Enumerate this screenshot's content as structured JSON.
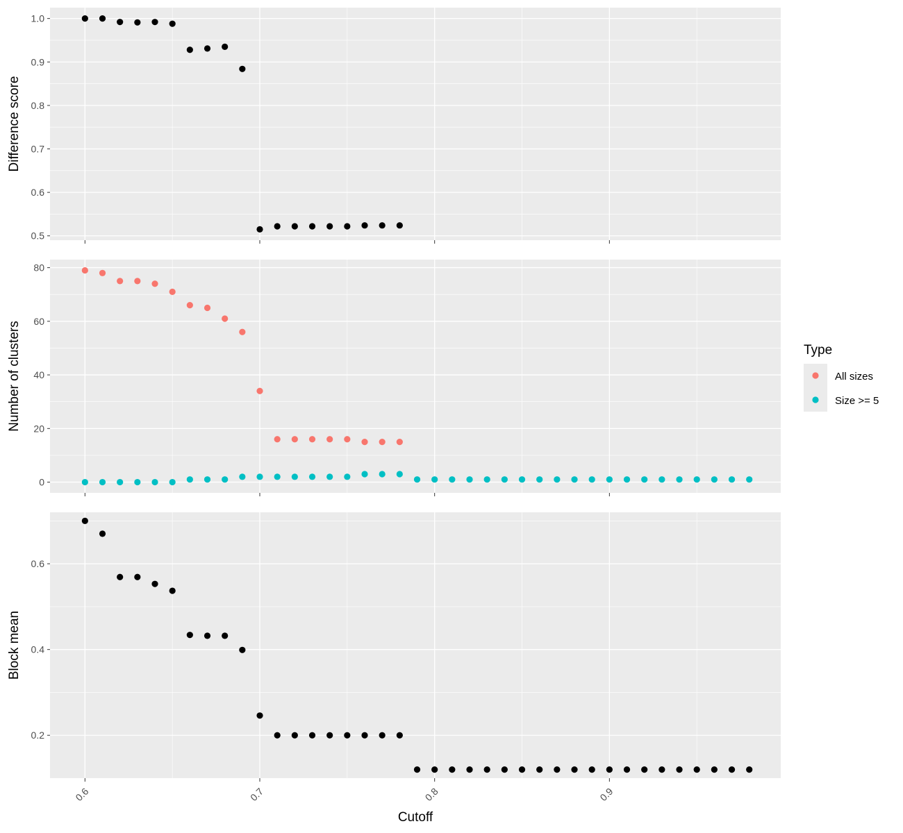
{
  "chart_data": {
    "type": "scatter",
    "xlabel": "Cutoff",
    "x_ticks": [
      "0.6",
      "0.7",
      "0.8",
      "0.9"
    ],
    "xlim": [
      0.58,
      0.998
    ],
    "grid": true,
    "legend": {
      "title": "Type",
      "placement": "right",
      "entries": [
        {
          "label": "All sizes",
          "color": "#F8766D"
        },
        {
          "label": "Size >= 5",
          "color": "#00BFC4"
        }
      ]
    },
    "panels": [
      {
        "name": "difference-score",
        "ylabel": "Difference score",
        "ylim": [
          0.49,
          1.025
        ],
        "y_ticks": [
          "0.5",
          "0.6",
          "0.7",
          "0.8",
          "0.9",
          "1.0"
        ],
        "series": [
          {
            "color": "#000000",
            "x": [
              0.6,
              0.61,
              0.62,
              0.63,
              0.64,
              0.65,
              0.66,
              0.67,
              0.68,
              0.69,
              0.7,
              0.71,
              0.72,
              0.73,
              0.74,
              0.75,
              0.76,
              0.77,
              0.78
            ],
            "y": [
              1.0,
              1.0,
              0.992,
              0.991,
              0.992,
              0.988,
              0.928,
              0.931,
              0.935,
              0.884,
              0.515,
              0.522,
              0.522,
              0.522,
              0.522,
              0.522,
              0.524,
              0.524,
              0.524
            ]
          }
        ]
      },
      {
        "name": "number-of-clusters",
        "ylabel": "Number of clusters",
        "ylim": [
          -4,
          83
        ],
        "y_ticks": [
          "0",
          "20",
          "40",
          "60",
          "80"
        ],
        "series": [
          {
            "name": "All sizes",
            "color": "#F8766D",
            "x": [
              0.6,
              0.61,
              0.62,
              0.63,
              0.64,
              0.65,
              0.66,
              0.67,
              0.68,
              0.69,
              0.7,
              0.71,
              0.72,
              0.73,
              0.74,
              0.75,
              0.76,
              0.77,
              0.78
            ],
            "y": [
              79,
              78,
              75,
              75,
              74,
              71,
              66,
              65,
              61,
              56,
              34,
              16,
              16,
              16,
              16,
              16,
              15,
              15,
              15
            ]
          },
          {
            "name": "Size >= 5",
            "color": "#00BFC4",
            "x": [
              0.6,
              0.61,
              0.62,
              0.63,
              0.64,
              0.65,
              0.66,
              0.67,
              0.68,
              0.69,
              0.7,
              0.71,
              0.72,
              0.73,
              0.74,
              0.75,
              0.76,
              0.77,
              0.78,
              0.79,
              0.8,
              0.81,
              0.82,
              0.83,
              0.84,
              0.85,
              0.86,
              0.87,
              0.88,
              0.89,
              0.9,
              0.91,
              0.92,
              0.93,
              0.94,
              0.95,
              0.96,
              0.97,
              0.98
            ],
            "y": [
              0,
              0,
              0,
              0,
              0,
              0,
              1,
              1,
              1,
              2,
              2,
              2,
              2,
              2,
              2,
              2,
              3,
              3,
              3,
              1,
              1,
              1,
              1,
              1,
              1,
              1,
              1,
              1,
              1,
              1,
              1,
              1,
              1,
              1,
              1,
              1,
              1,
              1,
              1
            ]
          }
        ]
      },
      {
        "name": "block-mean",
        "ylabel": "Block mean",
        "ylim": [
          0.1,
          0.72
        ],
        "y_ticks": [
          "0.2",
          "0.4",
          "0.6"
        ],
        "series": [
          {
            "color": "#000000",
            "x": [
              0.6,
              0.61,
              0.62,
              0.63,
              0.64,
              0.65,
              0.66,
              0.67,
              0.68,
              0.69,
              0.7,
              0.71,
              0.72,
              0.73,
              0.74,
              0.75,
              0.76,
              0.77,
              0.78,
              0.79,
              0.8,
              0.81,
              0.82,
              0.83,
              0.84,
              0.85,
              0.86,
              0.87,
              0.88,
              0.89,
              0.9,
              0.91,
              0.92,
              0.93,
              0.94,
              0.95,
              0.96,
              0.97,
              0.98
            ],
            "y": [
              0.7,
              0.67,
              0.569,
              0.569,
              0.553,
              0.537,
              0.434,
              0.432,
              0.432,
              0.399,
              0.246,
              0.2,
              0.2,
              0.2,
              0.2,
              0.2,
              0.2,
              0.2,
              0.2,
              0.12,
              0.12,
              0.12,
              0.12,
              0.12,
              0.12,
              0.12,
              0.12,
              0.12,
              0.12,
              0.12,
              0.12,
              0.12,
              0.12,
              0.12,
              0.12,
              0.12,
              0.12,
              0.12,
              0.12
            ]
          }
        ]
      }
    ]
  }
}
